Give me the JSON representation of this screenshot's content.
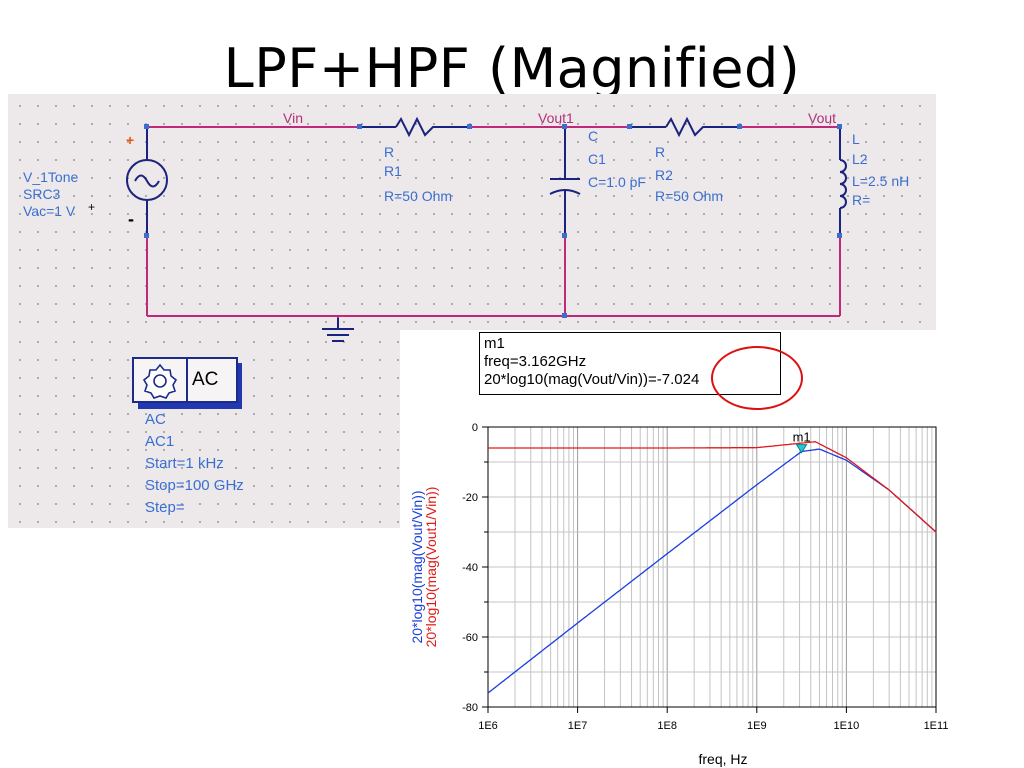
{
  "slide": {
    "title": "LPF+HPF (Magnified)"
  },
  "schematic": {
    "nets": {
      "vin": "Vin",
      "vout1": "Vout1",
      "vout": "Vout"
    },
    "source": {
      "name": "V_1Tone",
      "inst": "SRC3",
      "value": "Vac=1 V",
      "plus_left": "+",
      "plus_right": "+",
      "minus": "-"
    },
    "r1": {
      "type": "R",
      "inst": "R1",
      "value": "R=50 Ohm"
    },
    "c1": {
      "type": "C",
      "inst": "C1",
      "value": "C=1.0 pF"
    },
    "r2": {
      "type": "R",
      "inst": "R2",
      "value": "R=50 Ohm"
    },
    "l2": {
      "type": "L",
      "inst": "L2",
      "value": "L=2.5 nH",
      "r_param": "R="
    },
    "ac": {
      "label": "AC",
      "type": "AC",
      "inst": "AC1",
      "start": "Start=1 kHz",
      "stop": "Stop=100 GHz",
      "step": "Step="
    }
  },
  "marker": {
    "name": "m1",
    "freq_line": "freq=3.162GHz",
    "value_line": "20*log10(mag(Vout/Vin))=-7.024",
    "plot_label": "m1"
  },
  "colors": {
    "series_blue": "#1a3fe0",
    "series_red": "#e01a1a",
    "wire": "#c0287a",
    "highlight_circle": "#dd1010",
    "component": "#1a237e"
  },
  "chart_data": {
    "type": "line",
    "title": "",
    "xlabel": "freq, Hz",
    "xscale": "log",
    "xlim": [
      1000000,
      100000000000
    ],
    "ylim": [
      -80,
      0
    ],
    "grid": true,
    "x_ticks": [
      "1E6",
      "1E7",
      "1E8",
      "1E9",
      "1E10",
      "1E11"
    ],
    "y_ticks": [
      "0",
      "-20",
      "-40",
      "-60",
      "-80"
    ],
    "ylabels": [
      "20*log10(mag(Vout/Vin))",
      "20*log10(mag(Vout1/Vin))"
    ],
    "series": [
      {
        "name": "20*log10(mag(Vout/Vin))",
        "color": "#1a3fe0",
        "x": [
          1000000,
          10000000,
          100000000,
          1000000000,
          3162000000,
          5000000000,
          10000000000,
          30000000000,
          100000000000
        ],
        "y": [
          -76,
          -56,
          -36.2,
          -16.5,
          -7.0,
          -6.3,
          -9.5,
          -18,
          -30
        ]
      },
      {
        "name": "20*log10(mag(Vout1/Vin))",
        "color": "#e01a1a",
        "x": [
          1000000,
          10000000,
          100000000,
          1000000000,
          3162000000,
          4500000000,
          10000000000,
          30000000000,
          100000000000
        ],
        "y": [
          -6.0,
          -6.0,
          -6.0,
          -5.9,
          -4.6,
          -4.2,
          -8.8,
          -18,
          -30
        ]
      }
    ],
    "markers": [
      {
        "name": "m1",
        "x": 3162000000,
        "y": -7.024
      }
    ]
  }
}
